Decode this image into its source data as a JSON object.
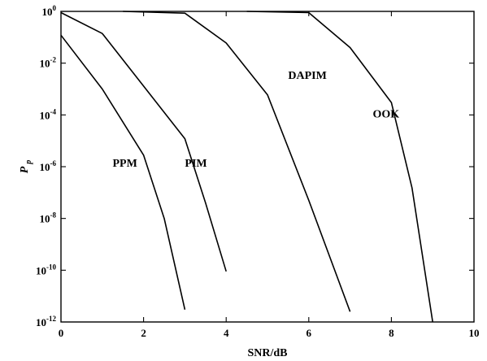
{
  "chart_data": {
    "type": "line",
    "xlabel": "SNR/dB",
    "ylabel_main": "P",
    "ylabel_sub": "p",
    "xlim": [
      0,
      10
    ],
    "ylim": [
      1e-12,
      1
    ],
    "yscale": "log",
    "grid": false,
    "x_ticks": [
      {
        "value": 0,
        "label": "0"
      },
      {
        "value": 2,
        "label": "2"
      },
      {
        "value": 4,
        "label": "4"
      },
      {
        "value": 6,
        "label": "6"
      },
      {
        "value": 8,
        "label": "8"
      },
      {
        "value": 10,
        "label": "10"
      }
    ],
    "y_ticks": [
      {
        "value": 1,
        "base": "10",
        "exp": "0"
      },
      {
        "value": 0.01,
        "base": "10",
        "exp": "-2"
      },
      {
        "value": 0.0001,
        "base": "10",
        "exp": "-4"
      },
      {
        "value": 1e-06,
        "base": "10",
        "exp": "-6"
      },
      {
        "value": 1e-08,
        "base": "10",
        "exp": "-8"
      },
      {
        "value": 1e-10,
        "base": "10",
        "exp": "-10"
      },
      {
        "value": 1e-12,
        "base": "10",
        "exp": "-12"
      }
    ],
    "series": [
      {
        "name": "PPM",
        "x": [
          0,
          1,
          2,
          2.5,
          3
        ],
        "y": [
          0.12,
          0.001,
          2.8e-06,
          1e-08,
          3e-12
        ]
      },
      {
        "name": "PIM",
        "x": [
          0,
          1,
          2,
          3,
          3.5,
          4
        ],
        "y": [
          0.9,
          0.14,
          0.0013,
          1.2e-05,
          4e-08,
          9e-11
        ]
      },
      {
        "name": "DAPIM",
        "x": [
          1.5,
          3,
          4,
          5,
          6,
          7
        ],
        "y": [
          1,
          0.85,
          0.06,
          0.0006,
          5e-08,
          2.5e-12
        ]
      },
      {
        "name": "OOK",
        "x": [
          4.5,
          6,
          7,
          8,
          8.5,
          9
        ],
        "y": [
          1,
          0.9,
          0.04,
          0.0003,
          1.5e-07,
          1e-12
        ]
      }
    ],
    "series_labels": [
      {
        "series": "PPM",
        "label": "PPM",
        "at_x": 1.25,
        "at_y": 1e-06
      },
      {
        "series": "PIM",
        "label": "PIM",
        "at_x": 3.0,
        "at_y": 1e-06
      },
      {
        "series": "DAPIM",
        "label": "DAPIM",
        "at_x": 5.5,
        "at_y": 0.0025
      },
      {
        "series": "OOK",
        "label": "OOK",
        "at_x": 7.55,
        "at_y": 8e-05
      }
    ]
  }
}
